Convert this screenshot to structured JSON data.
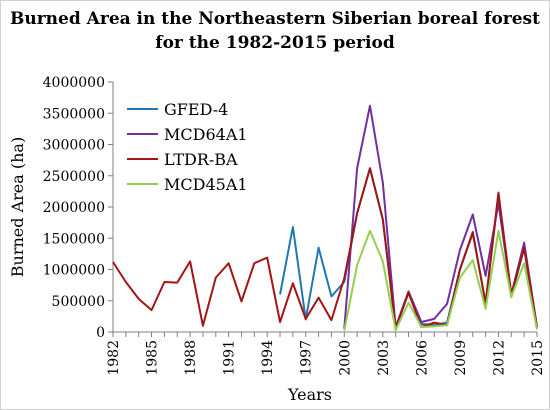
{
  "chart_data": {
    "type": "line",
    "title": "Burned Area in the Northeastern Siberian boreal forest",
    "subtitle": "for the 1982-2015 period",
    "xlabel": "Years",
    "ylabel": "Burned Area (ha)",
    "ylim": [
      0,
      4000000
    ],
    "xlim": [
      1982,
      2015
    ],
    "yticks": [
      "0",
      "500000",
      "1000000",
      "1500000",
      "2000000",
      "2500000",
      "3000000",
      "3500000",
      "4000000"
    ],
    "xticks": [
      "1982",
      "1985",
      "1988",
      "1991",
      "1994",
      "1997",
      "2000",
      "2003",
      "2006",
      "2009",
      "2012",
      "2015"
    ],
    "grid": false,
    "legend": "top-left",
    "series": [
      {
        "name": "GFED-4",
        "color": "#1f77b4",
        "x": [
          1995,
          1996,
          1997,
          1998,
          1999,
          2000,
          2001,
          2002,
          2003,
          2004,
          2005,
          2006,
          2007,
          2008,
          2009,
          2010,
          2011,
          2012,
          2013,
          2014,
          2015
        ],
        "y": [
          600000,
          1680000,
          200000,
          1350000,
          570000,
          800000,
          1900000,
          2620000,
          1800000,
          60000,
          630000,
          130000,
          110000,
          150000,
          1000000,
          1580000,
          460000,
          2200000,
          560000,
          1350000,
          70000
        ]
      },
      {
        "name": "MCD64A1",
        "color": "#7030a0",
        "x": [
          2000,
          2001,
          2002,
          2003,
          2004,
          2005,
          2006,
          2007,
          2008,
          2009,
          2010,
          2011,
          2012,
          2013,
          2014,
          2015
        ],
        "y": [
          50000,
          2620000,
          3620000,
          2390000,
          80000,
          650000,
          160000,
          210000,
          450000,
          1310000,
          1880000,
          900000,
          2060000,
          600000,
          1430000,
          80000
        ]
      },
      {
        "name": "LTDR-BA",
        "color": "#a31515",
        "x": [
          1982,
          1983,
          1984,
          1985,
          1986,
          1987,
          1988,
          1989,
          1990,
          1991,
          1992,
          1993,
          1994,
          1995,
          1996,
          1997,
          1998,
          1999,
          2000,
          2001,
          2002,
          2003,
          2004,
          2005,
          2006,
          2007,
          2008,
          2009,
          2010,
          2011,
          2012,
          2013,
          2014,
          2015
        ],
        "y": [
          1120000,
          800000,
          530000,
          350000,
          800000,
          790000,
          1130000,
          100000,
          870000,
          1100000,
          490000,
          1100000,
          1190000,
          160000,
          780000,
          210000,
          550000,
          190000,
          860000,
          1900000,
          2620000,
          1800000,
          60000,
          630000,
          80000,
          150000,
          110000,
          1000000,
          1600000,
          460000,
          2230000,
          600000,
          1340000,
          80000
        ]
      },
      {
        "name": "MCD45A1",
        "color": "#92d050",
        "x": [
          2000,
          2001,
          2002,
          2003,
          2004,
          2005,
          2006,
          2007,
          2008,
          2009,
          2010,
          2011,
          2012,
          2013,
          2014,
          2015
        ],
        "y": [
          20000,
          1070000,
          1620000,
          1130000,
          30000,
          470000,
          80000,
          90000,
          110000,
          870000,
          1150000,
          370000,
          1620000,
          560000,
          1100000,
          40000
        ]
      }
    ]
  }
}
